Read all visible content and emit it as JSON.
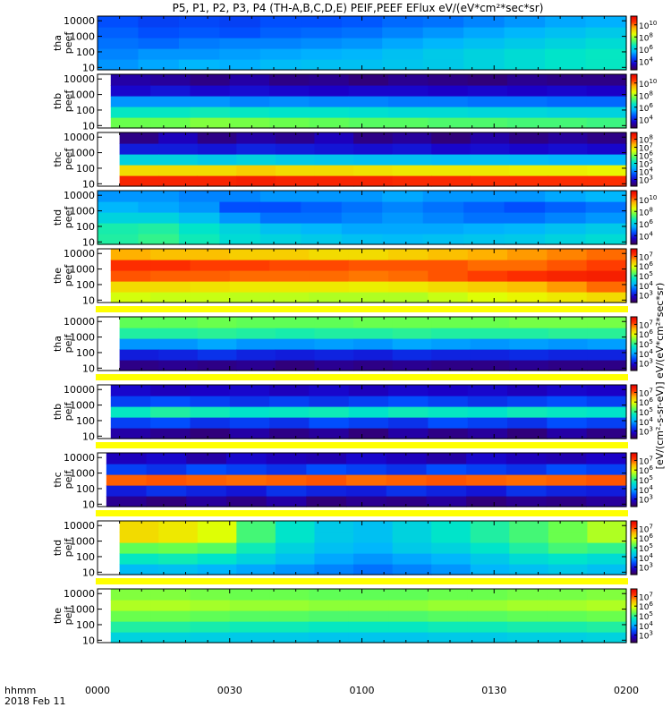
{
  "title": "P5, P1, P2, P3, P4 (TH-A,B,C,D,E) PEIF,PEEF EFlux eV/(eV*cm²*sec*sr)",
  "time_axis": {
    "label": "hhmm",
    "date": "2018 Feb 11",
    "ticks": [
      "0000",
      "0030",
      "0100",
      "0130",
      "0200"
    ],
    "tick_minutes": [
      0,
      30,
      60,
      90,
      120
    ],
    "minor_every_minutes": 5
  },
  "colorbar_side_label": "[eV/(cm²-s-sr-eV)] eV/(eV*cm²*sec*sr)",
  "energy_scale": "log",
  "energy_ticks": [
    "10",
    "100",
    "1000",
    "10000"
  ],
  "colormap": [
    "#3c0050",
    "#1a00c8",
    "#0050ff",
    "#00b4ff",
    "#00e6c8",
    "#64ff50",
    "#e6ff00",
    "#ffb400",
    "#ff3200",
    "#e60000"
  ],
  "chart_data": {
    "type": "heatmap",
    "panels": [
      {
        "id": "tha_peef",
        "label": "tha\npeef",
        "label_lines": [
          "tha",
          "peef"
        ],
        "ylim": [
          7,
          20000
        ],
        "cbar_exponents": [
          4,
          6,
          8,
          10
        ],
        "cbar_top": "10",
        "data_start_min": 0,
        "levels": [
          [
            0.3,
            0.28,
            0.26,
            0.24,
            0.22
          ],
          [
            0.32,
            0.3,
            0.25,
            0.22,
            0.2
          ],
          [
            0.34,
            0.3,
            0.27,
            0.23,
            0.21
          ],
          [
            0.33,
            0.31,
            0.28,
            0.22,
            0.2
          ],
          [
            0.35,
            0.32,
            0.28,
            0.24,
            0.22
          ],
          [
            0.36,
            0.33,
            0.29,
            0.25,
            0.22
          ],
          [
            0.36,
            0.34,
            0.3,
            0.26,
            0.23
          ],
          [
            0.37,
            0.36,
            0.32,
            0.28,
            0.25
          ],
          [
            0.38,
            0.38,
            0.34,
            0.3,
            0.26
          ],
          [
            0.4,
            0.4,
            0.36,
            0.32,
            0.28
          ],
          [
            0.42,
            0.42,
            0.38,
            0.34,
            0.3
          ],
          [
            0.44,
            0.44,
            0.4,
            0.36,
            0.32
          ],
          [
            0.45,
            0.45,
            0.42,
            0.38,
            0.33
          ]
        ]
      },
      {
        "id": "thb_peef",
        "label": "thb\npeef",
        "label_lines": [
          "thb",
          "peef"
        ],
        "ylim": [
          7,
          20000
        ],
        "cbar_exponents": [
          4,
          6,
          8,
          10
        ],
        "cbar_top": "10",
        "data_start_min": 3,
        "levels": [
          [
            0.56,
            0.45,
            0.3,
            0.12,
            0.08
          ],
          [
            0.56,
            0.45,
            0.3,
            0.14,
            0.07
          ],
          [
            0.58,
            0.46,
            0.3,
            0.12,
            0.05
          ],
          [
            0.57,
            0.45,
            0.28,
            0.13,
            0.08
          ],
          [
            0.56,
            0.44,
            0.29,
            0.12,
            0.05
          ],
          [
            0.55,
            0.44,
            0.28,
            0.11,
            0.06
          ],
          [
            0.54,
            0.43,
            0.28,
            0.12,
            0.04
          ],
          [
            0.54,
            0.42,
            0.27,
            0.12,
            0.06
          ],
          [
            0.53,
            0.42,
            0.27,
            0.11,
            0.05
          ],
          [
            0.53,
            0.41,
            0.26,
            0.12,
            0.04
          ],
          [
            0.52,
            0.41,
            0.26,
            0.11,
            0.06
          ],
          [
            0.52,
            0.4,
            0.25,
            0.12,
            0.05
          ],
          [
            0.51,
            0.4,
            0.25,
            0.11,
            0.05
          ]
        ]
      },
      {
        "id": "thc_peef",
        "label": "thc\npeef",
        "label_lines": [
          "thc",
          "peef"
        ],
        "ylim": [
          7,
          20000
        ],
        "cbar_exponents": [
          3,
          4,
          5,
          6,
          7,
          8
        ],
        "cbar_top": "10",
        "data_start_min": 5,
        "levels": [
          [
            0.92,
            0.72,
            0.4,
            0.15,
            0.05
          ],
          [
            0.92,
            0.72,
            0.4,
            0.15,
            0.1
          ],
          [
            0.92,
            0.72,
            0.38,
            0.14,
            0.05
          ],
          [
            0.93,
            0.74,
            0.4,
            0.16,
            0.08
          ],
          [
            0.92,
            0.72,
            0.38,
            0.15,
            0.06
          ],
          [
            0.92,
            0.72,
            0.37,
            0.14,
            0.1
          ],
          [
            0.92,
            0.71,
            0.36,
            0.13,
            0.05
          ],
          [
            0.91,
            0.7,
            0.36,
            0.14,
            0.07
          ],
          [
            0.91,
            0.7,
            0.35,
            0.12,
            0.04
          ],
          [
            0.9,
            0.7,
            0.36,
            0.13,
            0.08
          ],
          [
            0.9,
            0.69,
            0.35,
            0.12,
            0.05
          ],
          [
            0.9,
            0.69,
            0.34,
            0.13,
            0.07
          ],
          [
            0.9,
            0.68,
            0.34,
            0.12,
            0.05
          ]
        ]
      },
      {
        "id": "thd_peef",
        "label": "thd\npeef",
        "label_lines": [
          "thd",
          "peef"
        ],
        "ylim": [
          7,
          20000
        ],
        "cbar_exponents": [
          4,
          6,
          8,
          10
        ],
        "cbar_top": "10",
        "data_start_min": 0,
        "levels": [
          [
            0.48,
            0.47,
            0.4,
            0.34,
            0.3
          ],
          [
            0.5,
            0.48,
            0.4,
            0.32,
            0.3
          ],
          [
            0.46,
            0.44,
            0.36,
            0.3,
            0.28
          ],
          [
            0.42,
            0.4,
            0.3,
            0.22,
            0.28
          ],
          [
            0.4,
            0.36,
            0.26,
            0.22,
            0.3
          ],
          [
            0.38,
            0.34,
            0.26,
            0.24,
            0.3
          ],
          [
            0.36,
            0.32,
            0.28,
            0.26,
            0.3
          ],
          [
            0.35,
            0.32,
            0.3,
            0.28,
            0.32
          ],
          [
            0.36,
            0.32,
            0.28,
            0.26,
            0.3
          ],
          [
            0.37,
            0.33,
            0.26,
            0.24,
            0.3
          ],
          [
            0.38,
            0.34,
            0.26,
            0.22,
            0.3
          ],
          [
            0.4,
            0.36,
            0.28,
            0.24,
            0.32
          ],
          [
            0.42,
            0.38,
            0.3,
            0.26,
            0.34
          ]
        ]
      },
      {
        "id": "the_peef",
        "label": "the\npeef",
        "label_lines": [
          "the",
          "peef"
        ],
        "ylim": [
          7,
          20000
        ],
        "cbar_exponents": [
          3,
          4,
          5,
          6,
          7
        ],
        "cbar_top": "10",
        "data_start_min": 3,
        "levels": [
          [
            0.65,
            0.72,
            0.86,
            0.9,
            0.78
          ],
          [
            0.64,
            0.72,
            0.85,
            0.9,
            0.76
          ],
          [
            0.64,
            0.71,
            0.85,
            0.88,
            0.76
          ],
          [
            0.63,
            0.7,
            0.84,
            0.88,
            0.74
          ],
          [
            0.63,
            0.7,
            0.84,
            0.87,
            0.74
          ],
          [
            0.62,
            0.7,
            0.84,
            0.87,
            0.72
          ],
          [
            0.62,
            0.69,
            0.83,
            0.86,
            0.72
          ],
          [
            0.62,
            0.7,
            0.84,
            0.86,
            0.74
          ],
          [
            0.64,
            0.72,
            0.86,
            0.86,
            0.76
          ],
          [
            0.66,
            0.74,
            0.88,
            0.84,
            0.78
          ],
          [
            0.68,
            0.76,
            0.9,
            0.84,
            0.8
          ],
          [
            0.7,
            0.8,
            0.92,
            0.86,
            0.82
          ],
          [
            0.72,
            0.84,
            0.93,
            0.88,
            0.84
          ]
        ]
      },
      {
        "id": "tha_peif",
        "label": "tha\npeif",
        "label_lines": [
          "tha",
          "peif"
        ],
        "ylim": [
          7,
          20000
        ],
        "cbar_exponents": [
          3,
          4,
          5,
          6,
          7
        ],
        "cbar_top": "10",
        "data_start_min": 5,
        "levels": [
          [
            0.05,
            0.15,
            0.3,
            0.48,
            0.55
          ],
          [
            0.06,
            0.16,
            0.3,
            0.48,
            0.55
          ],
          [
            0.05,
            0.18,
            0.32,
            0.49,
            0.56
          ],
          [
            0.06,
            0.16,
            0.3,
            0.48,
            0.55
          ],
          [
            0.04,
            0.15,
            0.3,
            0.47,
            0.55
          ],
          [
            0.06,
            0.16,
            0.31,
            0.48,
            0.55
          ],
          [
            0.05,
            0.15,
            0.3,
            0.48,
            0.56
          ],
          [
            0.06,
            0.17,
            0.32,
            0.49,
            0.56
          ],
          [
            0.05,
            0.16,
            0.31,
            0.48,
            0.56
          ],
          [
            0.05,
            0.16,
            0.3,
            0.48,
            0.56
          ],
          [
            0.06,
            0.17,
            0.31,
            0.48,
            0.57
          ],
          [
            0.05,
            0.16,
            0.3,
            0.49,
            0.57
          ],
          [
            0.05,
            0.16,
            0.31,
            0.49,
            0.57
          ]
        ]
      },
      {
        "id": "thb_peif",
        "label": "thb\npeif",
        "label_lines": [
          "thb",
          "peif"
        ],
        "ylim": [
          7,
          20000
        ],
        "cbar_exponents": [
          3,
          4,
          5,
          6,
          7
        ],
        "cbar_top": "10",
        "data_start_min": 3,
        "levels": [
          [
            0.08,
            0.2,
            0.45,
            0.2,
            0.12
          ],
          [
            0.06,
            0.22,
            0.48,
            0.22,
            0.1
          ],
          [
            0.04,
            0.18,
            0.46,
            0.2,
            0.11
          ],
          [
            0.08,
            0.2,
            0.44,
            0.18,
            0.12
          ],
          [
            0.05,
            0.18,
            0.45,
            0.2,
            0.1
          ],
          [
            0.07,
            0.22,
            0.46,
            0.18,
            0.12
          ],
          [
            0.04,
            0.2,
            0.44,
            0.2,
            0.1
          ],
          [
            0.08,
            0.18,
            0.46,
            0.22,
            0.12
          ],
          [
            0.05,
            0.22,
            0.45,
            0.2,
            0.11
          ],
          [
            0.07,
            0.2,
            0.44,
            0.18,
            0.12
          ],
          [
            0.04,
            0.18,
            0.46,
            0.2,
            0.1
          ],
          [
            0.08,
            0.22,
            0.45,
            0.22,
            0.12
          ],
          [
            0.05,
            0.2,
            0.44,
            0.2,
            0.11
          ]
        ]
      },
      {
        "id": "thc_peif",
        "label": "thc\npeif",
        "label_lines": [
          "thc",
          "peif"
        ],
        "ylim": [
          7,
          20000
        ],
        "cbar_exponents": [
          3,
          4,
          5,
          6,
          7
        ],
        "cbar_top": "10",
        "data_start_min": 2,
        "levels": [
          [
            0.06,
            0.15,
            0.85,
            0.2,
            0.1
          ],
          [
            0.04,
            0.18,
            0.86,
            0.18,
            0.12
          ],
          [
            0.07,
            0.16,
            0.85,
            0.22,
            0.08
          ],
          [
            0.05,
            0.14,
            0.84,
            0.2,
            0.12
          ],
          [
            0.08,
            0.18,
            0.85,
            0.18,
            0.1
          ],
          [
            0.04,
            0.16,
            0.86,
            0.22,
            0.09
          ],
          [
            0.06,
            0.15,
            0.84,
            0.2,
            0.12
          ],
          [
            0.05,
            0.18,
            0.85,
            0.18,
            0.1
          ],
          [
            0.07,
            0.16,
            0.86,
            0.22,
            0.08
          ],
          [
            0.04,
            0.14,
            0.85,
            0.2,
            0.12
          ],
          [
            0.06,
            0.18,
            0.84,
            0.18,
            0.1
          ],
          [
            0.05,
            0.16,
            0.85,
            0.22,
            0.09
          ],
          [
            0.07,
            0.15,
            0.86,
            0.2,
            0.11
          ]
        ]
      },
      {
        "id": "thd_peif",
        "label": "thd\npeif",
        "label_lines": [
          "thd",
          "peif"
        ],
        "ylim": [
          7,
          20000
        ],
        "cbar_exponents": [
          3,
          4,
          5,
          6,
          7
        ],
        "cbar_top": "10",
        "data_start_min": 5,
        "levels": [
          [
            0.35,
            0.45,
            0.55,
            0.72,
            0.72
          ],
          [
            0.36,
            0.46,
            0.56,
            0.7,
            0.7
          ],
          [
            0.34,
            0.44,
            0.54,
            0.66,
            0.66
          ],
          [
            0.32,
            0.4,
            0.46,
            0.52,
            0.52
          ],
          [
            0.3,
            0.36,
            0.4,
            0.44,
            0.44
          ],
          [
            0.28,
            0.32,
            0.36,
            0.38,
            0.38
          ],
          [
            0.26,
            0.3,
            0.34,
            0.36,
            0.36
          ],
          [
            0.28,
            0.32,
            0.38,
            0.4,
            0.4
          ],
          [
            0.3,
            0.34,
            0.4,
            0.44,
            0.44
          ],
          [
            0.34,
            0.38,
            0.44,
            0.48,
            0.48
          ],
          [
            0.36,
            0.42,
            0.48,
            0.52,
            0.52
          ],
          [
            0.38,
            0.44,
            0.52,
            0.56,
            0.56
          ],
          [
            0.36,
            0.42,
            0.5,
            0.62,
            0.62
          ]
        ]
      },
      {
        "id": "the_peif",
        "label": "the\npeif",
        "label_lines": [
          "the",
          "peif"
        ],
        "ylim": [
          7,
          20000
        ],
        "cbar_exponents": [
          3,
          4,
          5,
          6,
          7
        ],
        "cbar_top": "10",
        "data_start_min": 3,
        "levels": [
          [
            0.4,
            0.48,
            0.56,
            0.62,
            0.58
          ],
          [
            0.4,
            0.48,
            0.56,
            0.62,
            0.58
          ],
          [
            0.39,
            0.47,
            0.55,
            0.61,
            0.57
          ],
          [
            0.38,
            0.46,
            0.54,
            0.6,
            0.56
          ],
          [
            0.38,
            0.46,
            0.54,
            0.6,
            0.56
          ],
          [
            0.37,
            0.45,
            0.53,
            0.59,
            0.55
          ],
          [
            0.37,
            0.45,
            0.53,
            0.59,
            0.55
          ],
          [
            0.37,
            0.45,
            0.53,
            0.59,
            0.55
          ],
          [
            0.38,
            0.46,
            0.54,
            0.6,
            0.56
          ],
          [
            0.38,
            0.46,
            0.54,
            0.6,
            0.56
          ],
          [
            0.39,
            0.47,
            0.55,
            0.61,
            0.57
          ],
          [
            0.39,
            0.47,
            0.55,
            0.61,
            0.57
          ],
          [
            0.4,
            0.48,
            0.56,
            0.62,
            0.58
          ]
        ]
      }
    ]
  }
}
